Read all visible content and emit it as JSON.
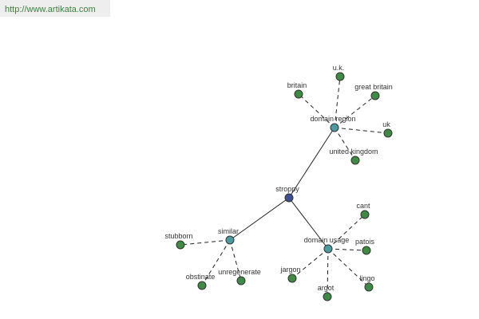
{
  "url": "http://www.artikata.com",
  "nodes": [
    {
      "label": "stroppy"
    },
    {
      "label": "domain region"
    },
    {
      "label": "similar"
    },
    {
      "label": "domain usage"
    },
    {
      "label": "britain"
    },
    {
      "label": "u.k."
    },
    {
      "label": "great britain"
    },
    {
      "label": "uk"
    },
    {
      "label": "united kingdom"
    },
    {
      "label": "stubborn"
    },
    {
      "label": "obstinate"
    },
    {
      "label": "unregenerate"
    },
    {
      "label": "cant"
    },
    {
      "label": "patois"
    },
    {
      "label": "jargon"
    },
    {
      "label": "argot"
    },
    {
      "label": "lingo"
    }
  ]
}
